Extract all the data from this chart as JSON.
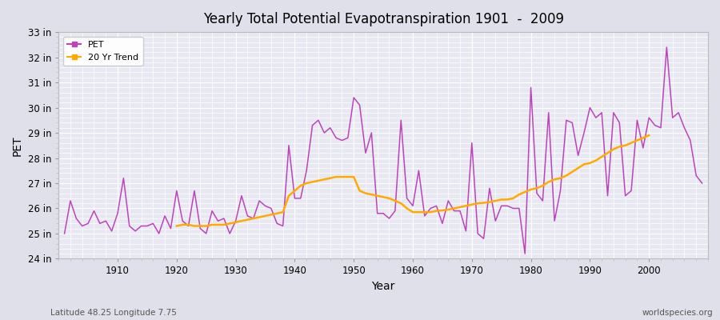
{
  "title": "Yearly Total Potential Evapotranspiration 1901  -  2009",
  "xlabel": "Year",
  "ylabel": "PET",
  "subtitle_left": "Latitude 48.25 Longitude 7.75",
  "watermark": "worldspecies.org",
  "pet_color": "#bb44bb",
  "trend_color": "#ffaa00",
  "bg_color": "#e0e0ea",
  "plot_bg_color": "#e8e8f2",
  "ylim": [
    24,
    33
  ],
  "yticks": [
    24,
    25,
    26,
    27,
    28,
    29,
    30,
    31,
    32,
    33
  ],
  "ytick_labels": [
    "24 in",
    "25 in",
    "26 in",
    "27 in",
    "28 in",
    "29 in",
    "30 in",
    "31 in",
    "32 in",
    "33 in"
  ],
  "years": [
    1901,
    1902,
    1903,
    1904,
    1905,
    1906,
    1907,
    1908,
    1909,
    1910,
    1911,
    1912,
    1913,
    1914,
    1915,
    1916,
    1917,
    1918,
    1919,
    1920,
    1921,
    1922,
    1923,
    1924,
    1925,
    1926,
    1927,
    1928,
    1929,
    1930,
    1931,
    1932,
    1933,
    1934,
    1935,
    1936,
    1937,
    1938,
    1939,
    1940,
    1941,
    1942,
    1943,
    1944,
    1945,
    1946,
    1947,
    1948,
    1949,
    1950,
    1951,
    1952,
    1953,
    1954,
    1955,
    1956,
    1957,
    1958,
    1959,
    1960,
    1961,
    1962,
    1963,
    1964,
    1965,
    1966,
    1967,
    1968,
    1969,
    1970,
    1971,
    1972,
    1973,
    1974,
    1975,
    1976,
    1977,
    1978,
    1979,
    1980,
    1981,
    1982,
    1983,
    1984,
    1985,
    1986,
    1987,
    1988,
    1989,
    1990,
    1991,
    1992,
    1993,
    1994,
    1995,
    1996,
    1997,
    1998,
    1999,
    2000,
    2001,
    2002,
    2003,
    2004,
    2005,
    2006,
    2007,
    2008,
    2009
  ],
  "pet_values": [
    25.0,
    26.3,
    25.6,
    25.3,
    25.4,
    25.9,
    25.4,
    25.5,
    25.1,
    25.8,
    27.2,
    25.3,
    25.1,
    25.3,
    25.3,
    25.4,
    25.0,
    25.7,
    25.2,
    26.7,
    25.5,
    25.3,
    26.7,
    25.2,
    25.0,
    25.9,
    25.5,
    25.6,
    25.0,
    25.5,
    26.5,
    25.7,
    25.6,
    26.3,
    26.1,
    26.0,
    25.4,
    25.3,
    28.5,
    26.4,
    26.4,
    27.5,
    29.3,
    29.5,
    29.0,
    29.2,
    28.8,
    28.7,
    28.8,
    30.4,
    30.1,
    28.2,
    29.0,
    25.8,
    25.8,
    25.6,
    25.9,
    29.5,
    26.4,
    26.1,
    27.5,
    25.7,
    26.0,
    26.1,
    25.4,
    26.3,
    25.9,
    25.9,
    25.1,
    28.6,
    25.0,
    24.8,
    26.8,
    25.5,
    26.1,
    26.1,
    26.0,
    26.0,
    24.2,
    30.8,
    26.6,
    26.3,
    29.8,
    25.5,
    26.7,
    29.5,
    29.4,
    28.1,
    29.0,
    30.0,
    29.6,
    29.8,
    26.5,
    29.8,
    29.4,
    26.5,
    26.7,
    29.5,
    28.4,
    29.6,
    29.3,
    29.2,
    32.4,
    29.6,
    29.8,
    29.2,
    28.7,
    27.3,
    27.0
  ],
  "trend_values": [
    null,
    null,
    null,
    null,
    null,
    null,
    null,
    null,
    null,
    null,
    null,
    null,
    null,
    null,
    null,
    null,
    null,
    null,
    null,
    25.3,
    25.35,
    25.35,
    25.3,
    25.3,
    25.3,
    25.35,
    25.35,
    25.35,
    25.4,
    25.45,
    25.5,
    25.55,
    25.6,
    25.65,
    25.7,
    25.75,
    25.8,
    25.85,
    26.5,
    26.7,
    26.9,
    27.0,
    27.05,
    27.1,
    27.15,
    27.2,
    27.25,
    27.25,
    27.25,
    27.25,
    26.7,
    26.6,
    26.55,
    26.5,
    26.45,
    26.4,
    26.3,
    26.2,
    26.0,
    25.85,
    25.85,
    25.85,
    25.85,
    25.9,
    25.92,
    25.95,
    26.0,
    26.05,
    26.1,
    26.15,
    26.2,
    26.22,
    26.25,
    26.3,
    26.35,
    26.35,
    26.4,
    26.55,
    26.65,
    26.75,
    26.8,
    26.9,
    27.05,
    27.15,
    27.2,
    27.3,
    27.45,
    27.6,
    27.75,
    27.8,
    27.9,
    28.05,
    28.2,
    28.35,
    28.45,
    28.5,
    28.6,
    28.7,
    28.8,
    28.9,
    null,
    null,
    null,
    null,
    null,
    null,
    null,
    null,
    null
  ]
}
